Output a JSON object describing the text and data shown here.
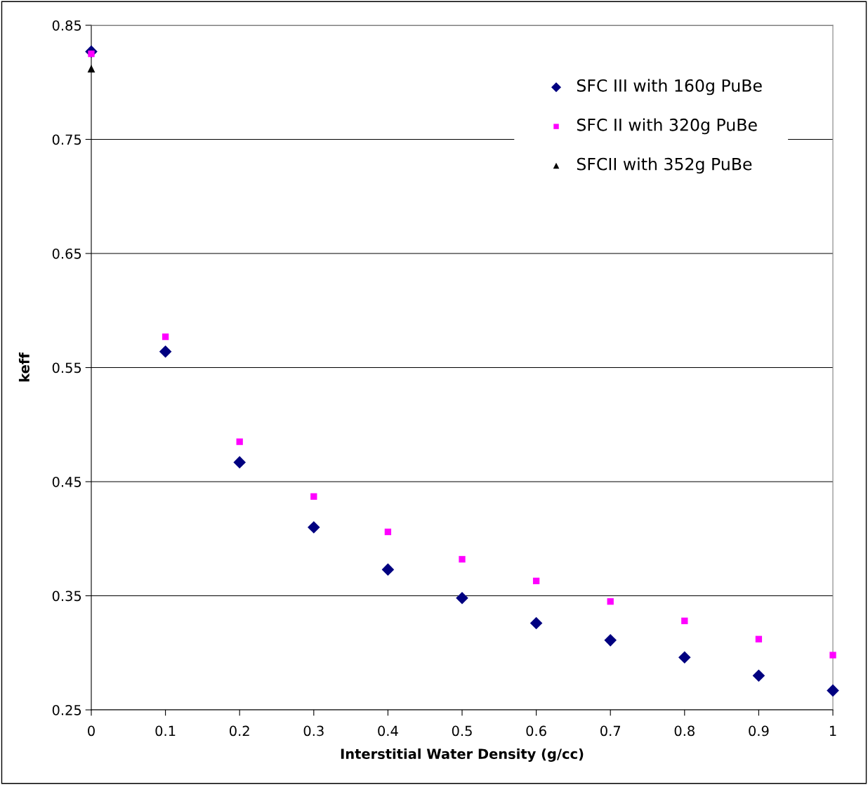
{
  "chart_data": {
    "type": "scatter",
    "xlabel": "Interstitial Water Density (g/cc)",
    "ylabel": "keff",
    "series": [
      {
        "name": "SFC III with 160g PuBe",
        "color": "#000080",
        "marker": "diamond",
        "x": [
          0,
          0.1,
          0.2,
          0.3,
          0.4,
          0.5,
          0.6,
          0.7,
          0.8,
          0.9,
          1
        ],
        "values": [
          0.827,
          0.564,
          0.467,
          0.41,
          0.373,
          0.348,
          0.326,
          0.311,
          0.296,
          0.28,
          0.267
        ]
      },
      {
        "name": "SFC II with 320g PuBe",
        "color": "#ff00ff",
        "marker": "square",
        "x": [
          0,
          0.1,
          0.2,
          0.3,
          0.4,
          0.5,
          0.6,
          0.7,
          0.8,
          0.9,
          1
        ],
        "values": [
          0.825,
          0.577,
          0.485,
          0.437,
          0.406,
          0.382,
          0.363,
          0.345,
          0.328,
          0.312,
          0.298
        ]
      },
      {
        "name": "SFCII with 352g PuBe",
        "color": "#000000",
        "marker": "triangle",
        "x": [
          0
        ],
        "values": [
          0.812
        ]
      }
    ],
    "xlim": [
      0,
      1
    ],
    "xticks": [
      0,
      0.1,
      0.2,
      0.3,
      0.4,
      0.5,
      0.6,
      0.7,
      0.8,
      0.9,
      1
    ],
    "ylim": [
      0.25,
      0.85
    ],
    "yticks": [
      0.25,
      0.35,
      0.45,
      0.55,
      0.65,
      0.75,
      0.85
    ],
    "grid": "y",
    "legend": "top right"
  }
}
